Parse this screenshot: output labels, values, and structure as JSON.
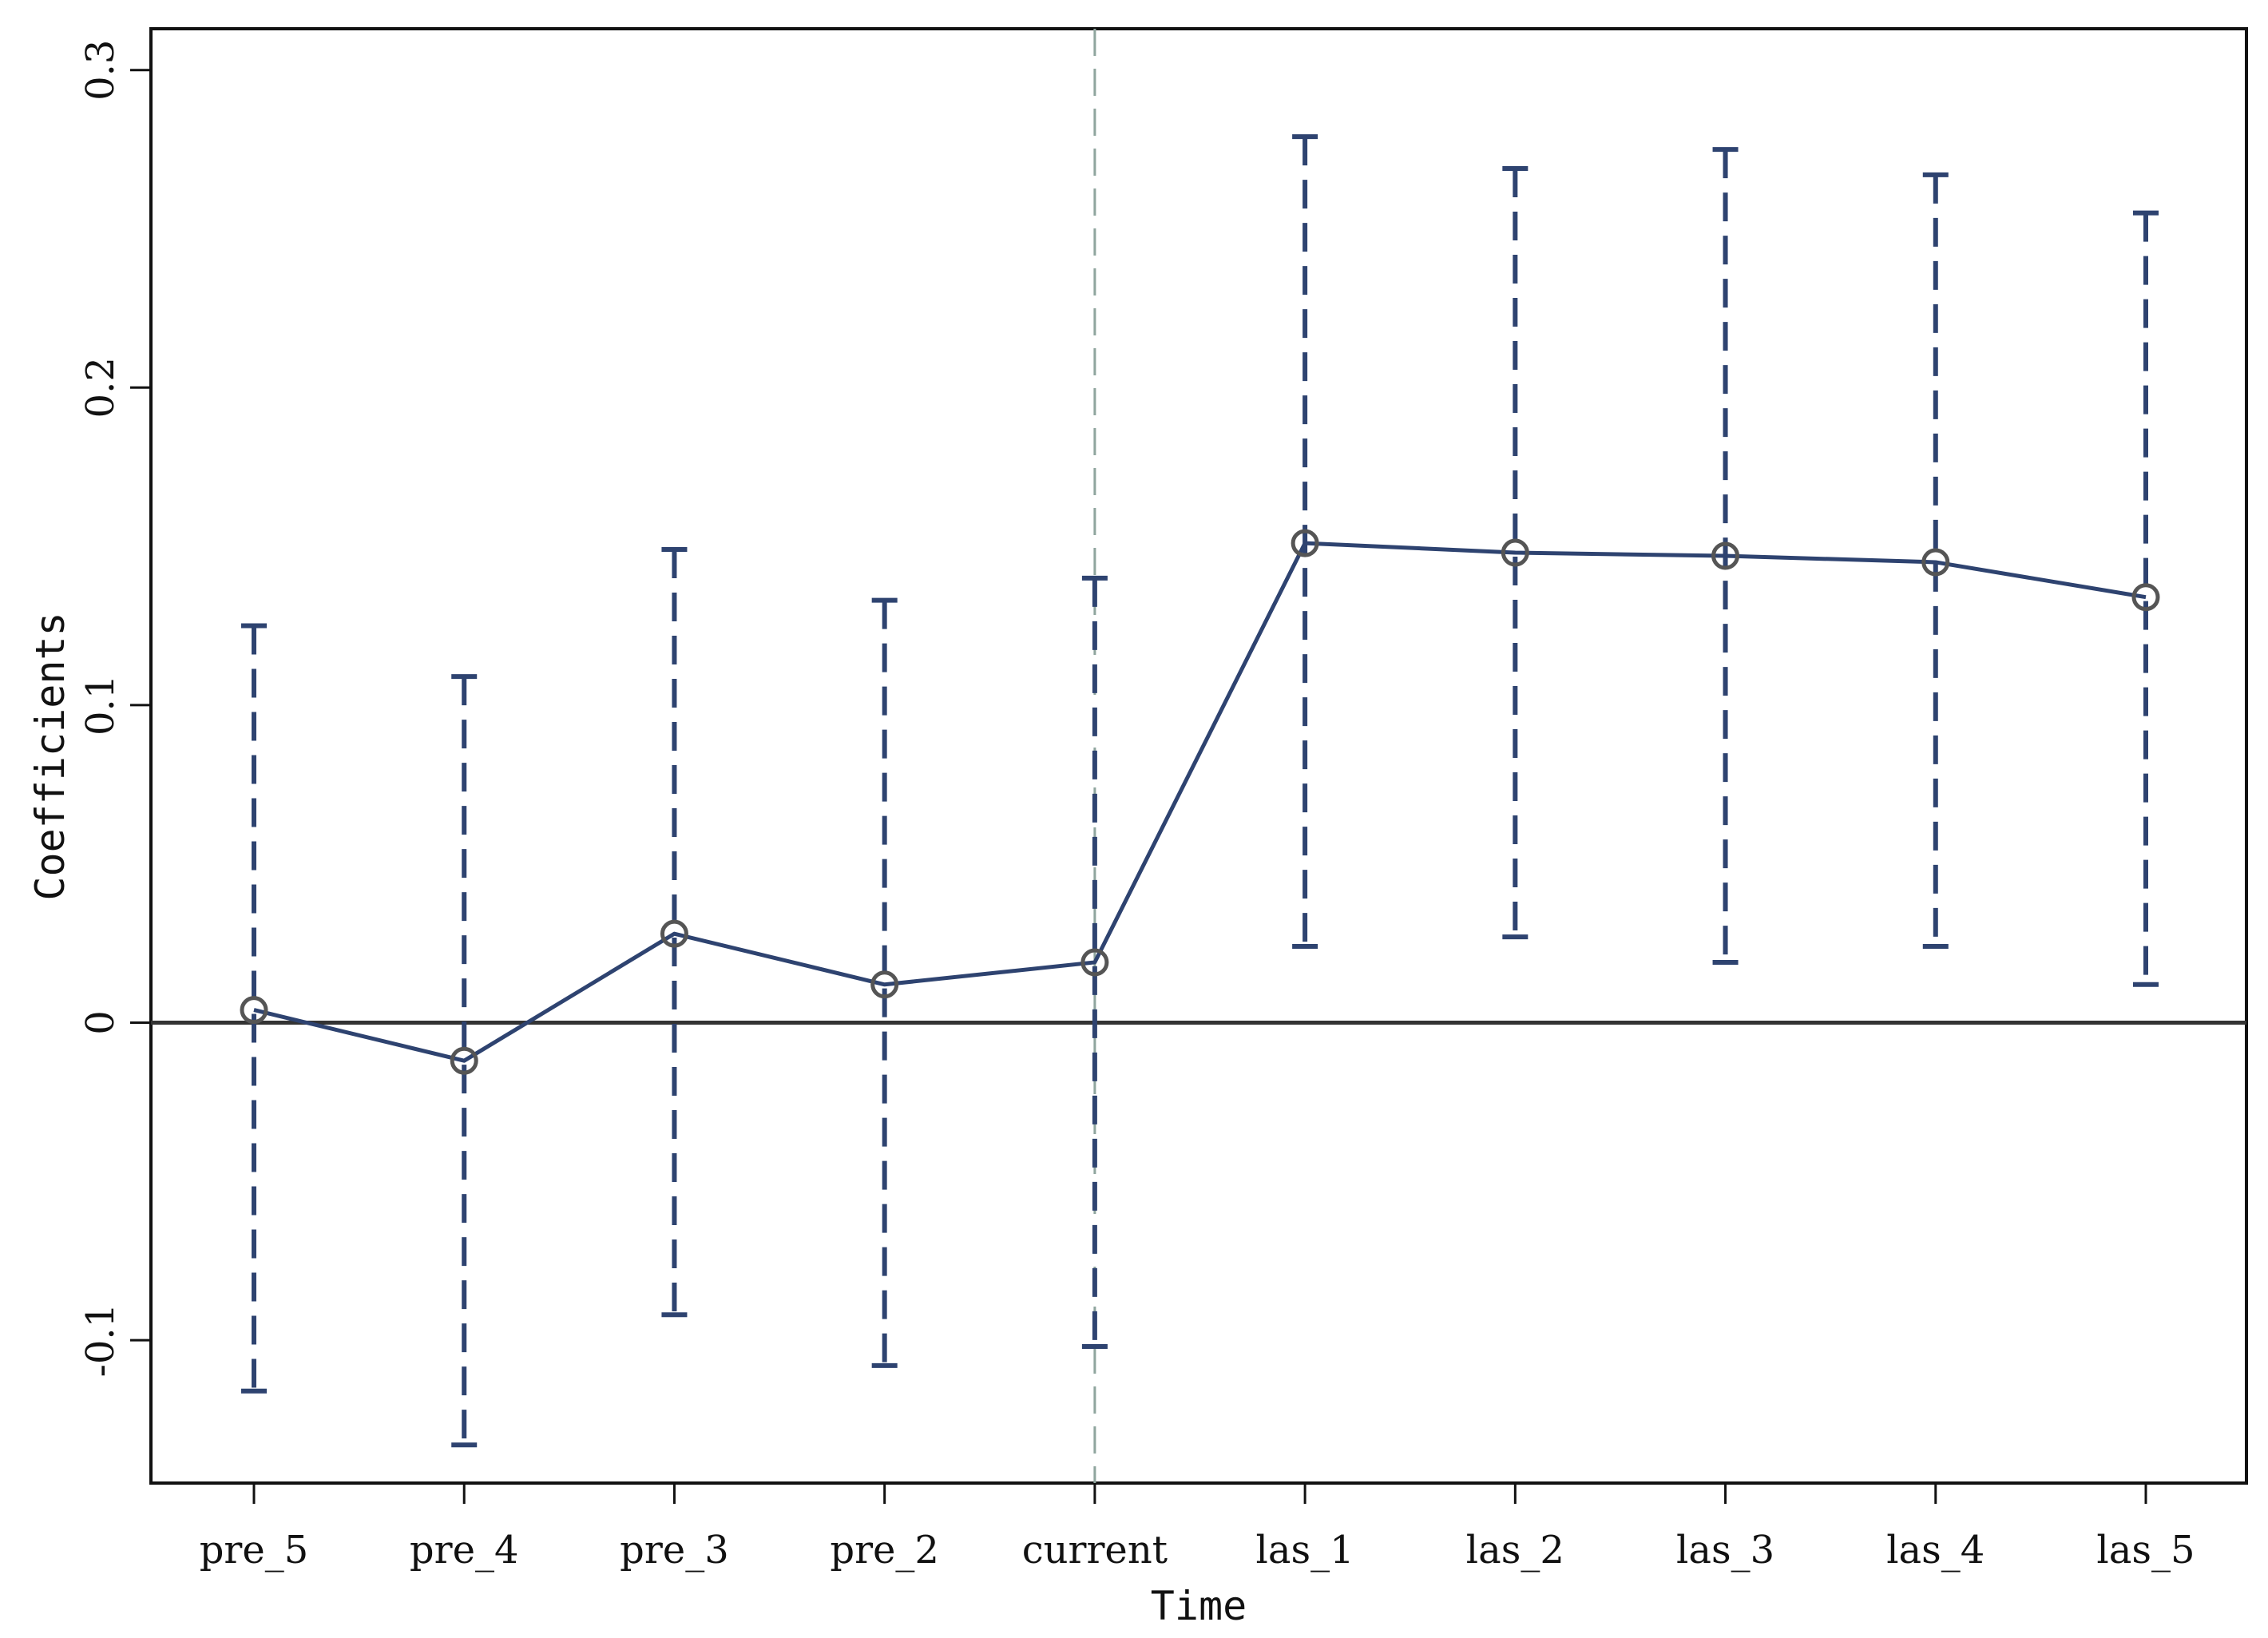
{
  "chart_data": {
    "type": "line",
    "title": "",
    "xlabel": "Time",
    "ylabel": "Coefficients",
    "categories": [
      "pre_5",
      "pre_4",
      "pre_3",
      "pre_2",
      "current",
      "las_1",
      "las_2",
      "las_3",
      "las_4",
      "las_5"
    ],
    "series": [
      {
        "values": [
          0.004,
          -0.012,
          0.028,
          0.012,
          0.019,
          0.151,
          0.148,
          0.147,
          0.145,
          0.134
        ],
        "ci_lower": [
          -0.116,
          -0.133,
          -0.092,
          -0.108,
          -0.102,
          0.024,
          0.027,
          0.019,
          0.024,
          0.012
        ],
        "ci_upper": [
          0.125,
          0.109,
          0.149,
          0.133,
          0.14,
          0.279,
          0.269,
          0.275,
          0.267,
          0.255
        ]
      }
    ],
    "y_ticks": [
      "-0.1",
      "0",
      "0.1",
      "0.2",
      "0.3"
    ],
    "y_tick_values": [
      -0.1,
      0,
      0.1,
      0.2,
      0.3
    ],
    "ylim": [
      -0.145,
      0.313
    ],
    "reference_line_y": 0,
    "vertical_reference_category": "current",
    "grid": false,
    "colors": {
      "series": "#2e4370",
      "marker": "#555555",
      "zero_line": "#333333",
      "vline": "#8fa59e",
      "axis": "#111111"
    }
  }
}
